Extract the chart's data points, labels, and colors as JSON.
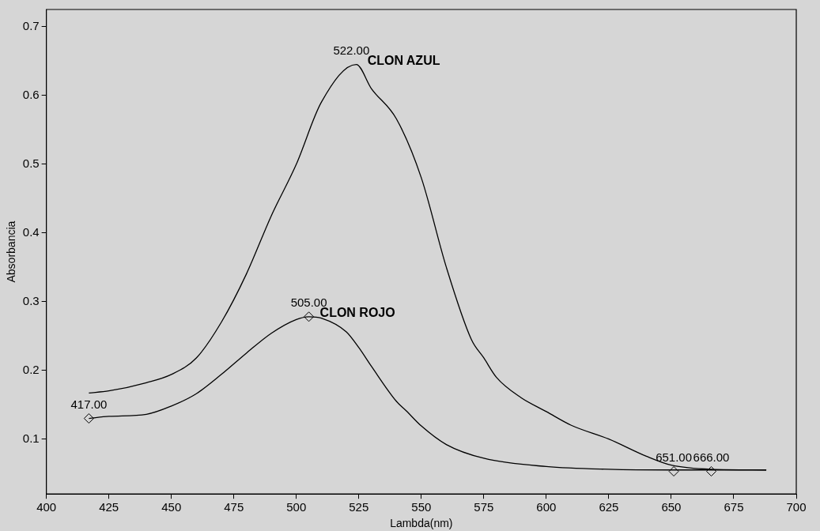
{
  "chart_data": {
    "type": "line",
    "xlabel": "Lambda(nm)",
    "ylabel": "Absorbancia",
    "xlim": [
      400,
      700
    ],
    "xticks": [
      400,
      425,
      450,
      475,
      500,
      525,
      550,
      575,
      600,
      625,
      650,
      675,
      700
    ],
    "ylim": [
      0.02,
      0.725
    ],
    "yticks": [
      0.1,
      0.2,
      0.3,
      0.4,
      0.5,
      0.6,
      0.7
    ],
    "grid": false,
    "legend": false,
    "marker": "none",
    "line_style": "solid",
    "series": [
      {
        "name": "CLON AZUL",
        "color": "#000000",
        "x": [
          417,
          425,
          440,
          450,
          460,
          470,
          480,
          490,
          500,
          510,
          524,
          530,
          540,
          550,
          560,
          570,
          575,
          580,
          590,
          600,
          610,
          625,
          640,
          650,
          666,
          688
        ],
        "values": [
          0.167,
          0.17,
          0.182,
          0.194,
          0.218,
          0.27,
          0.34,
          0.425,
          0.5,
          0.59,
          0.645,
          0.61,
          0.566,
          0.48,
          0.35,
          0.245,
          0.218,
          0.19,
          0.16,
          0.14,
          0.12,
          0.1,
          0.075,
          0.062,
          0.056,
          0.055
        ]
      },
      {
        "name": "CLON ROJO",
        "color": "#000000",
        "x": [
          417,
          425,
          440,
          450,
          460,
          470,
          480,
          490,
          500,
          505,
          510,
          520,
          525,
          530,
          540,
          544,
          550,
          560,
          575,
          600,
          625,
          650,
          688
        ],
        "values": [
          0.13,
          0.133,
          0.136,
          0.148,
          0.166,
          0.194,
          0.225,
          0.254,
          0.274,
          0.278,
          0.276,
          0.256,
          0.233,
          0.206,
          0.155,
          0.141,
          0.119,
          0.092,
          0.072,
          0.06,
          0.056,
          0.055,
          0.055
        ]
      },
      {
        "type": "scatter",
        "marker": "diamond",
        "color": "#000000",
        "x": [
          417,
          505,
          651,
          666
        ],
        "values": [
          0.13,
          0.278,
          0.053,
          0.053
        ]
      }
    ],
    "annotations": [
      {
        "text": "522.00",
        "x": 522,
        "y": 0.645
      },
      {
        "text": "505.00",
        "x": 505,
        "y": 0.278
      },
      {
        "text": "417.00",
        "x": 417,
        "y": 0.13
      },
      {
        "text": "651.00",
        "x": 651,
        "y": 0.053
      },
      {
        "text": "666.00",
        "x": 666,
        "y": 0.053
      }
    ]
  }
}
